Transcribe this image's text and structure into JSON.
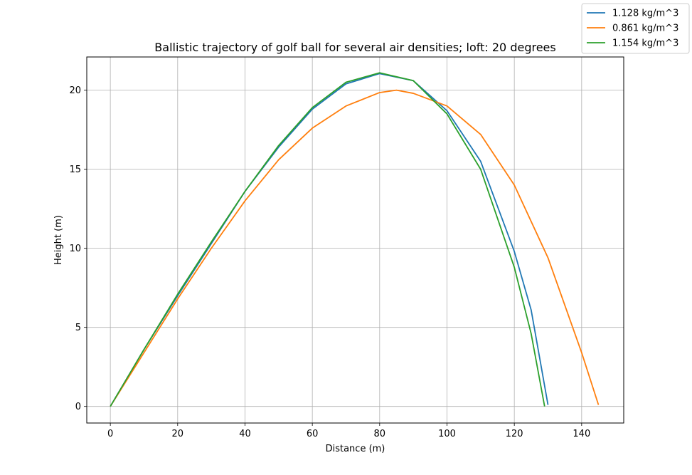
{
  "chart_data": {
    "type": "line",
    "title": "Ballistic trajectory of golf ball for several air densities; loft: 20 degrees",
    "xlabel": "Distance (m)",
    "ylabel": "Height (m)",
    "xlim": [
      -7,
      152.5
    ],
    "ylim": [
      -1.05,
      22.1
    ],
    "xticks": [
      0,
      20,
      40,
      60,
      80,
      100,
      120,
      140
    ],
    "yticks": [
      0,
      5,
      10,
      15,
      20
    ],
    "grid": true,
    "legend_position": "top-right (outside plot)",
    "series": [
      {
        "name": "1.128 kg/m^3",
        "color": "#1f77b4",
        "points": [
          [
            0,
            0
          ],
          [
            10,
            3.6
          ],
          [
            20,
            7.0
          ],
          [
            30,
            10.3
          ],
          [
            40,
            13.6
          ],
          [
            50,
            16.4
          ],
          [
            60,
            18.8
          ],
          [
            70,
            20.4
          ],
          [
            80,
            21.05
          ],
          [
            90,
            20.6
          ],
          [
            100,
            18.7
          ],
          [
            110,
            15.5
          ],
          [
            120,
            9.8
          ],
          [
            125,
            6.1
          ],
          [
            130,
            0.1
          ]
        ]
      },
      {
        "name": "0.861 kg/m^3",
        "color": "#ff7f0e",
        "points": [
          [
            0,
            0
          ],
          [
            10,
            3.4
          ],
          [
            20,
            6.8
          ],
          [
            30,
            10.0
          ],
          [
            40,
            13.0
          ],
          [
            50,
            15.6
          ],
          [
            60,
            17.6
          ],
          [
            70,
            19.0
          ],
          [
            80,
            19.85
          ],
          [
            85,
            20.0
          ],
          [
            90,
            19.8
          ],
          [
            100,
            19.0
          ],
          [
            110,
            17.2
          ],
          [
            120,
            14.0
          ],
          [
            130,
            9.4
          ],
          [
            140,
            3.4
          ],
          [
            145,
            0.1
          ]
        ]
      },
      {
        "name": "1.154 kg/m^3",
        "color": "#2ca02c",
        "points": [
          [
            0,
            0
          ],
          [
            10,
            3.6
          ],
          [
            20,
            7.1
          ],
          [
            30,
            10.4
          ],
          [
            40,
            13.6
          ],
          [
            50,
            16.5
          ],
          [
            60,
            18.9
          ],
          [
            70,
            20.5
          ],
          [
            80,
            21.1
          ],
          [
            90,
            20.6
          ],
          [
            100,
            18.5
          ],
          [
            110,
            15.0
          ],
          [
            120,
            8.8
          ],
          [
            125,
            4.6
          ],
          [
            129,
            0.0
          ]
        ]
      }
    ]
  }
}
